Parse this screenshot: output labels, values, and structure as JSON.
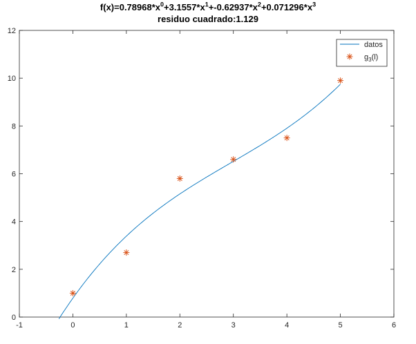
{
  "chart_data": {
    "type": "line",
    "title": {
      "f_prefix": "f(x)=",
      "terms": [
        {
          "coef": "0.78968",
          "sep": "*x",
          "exp": "0",
          "op": "+"
        },
        {
          "coef": "3.1557",
          "sep": "*x",
          "exp": "1",
          "op": "+"
        },
        {
          "coef": "-0.62937",
          "sep": "*x",
          "exp": "2",
          "op": "+"
        },
        {
          "coef": "0.071296",
          "sep": "*x",
          "exp": "3",
          "op": ""
        }
      ],
      "line2": "residuo cuadrado:1.129"
    },
    "coefficients": [
      0.78968,
      3.1557,
      -0.62937,
      0.071296
    ],
    "curve_x_range": [
      -0.26,
      5
    ],
    "xlim": [
      -1,
      6
    ],
    "ylim": [
      0,
      12
    ],
    "xticks": [
      -1,
      0,
      1,
      2,
      3,
      4,
      5,
      6
    ],
    "yticks": [
      0,
      2,
      4,
      6,
      8,
      10,
      12
    ],
    "grid": false,
    "legend_position": "top-right",
    "series": [
      {
        "name": "datos",
        "kind": "line",
        "color": "#0072bd"
      },
      {
        "name_base": "g",
        "name_sub": "3",
        "name_suffix": "(l)",
        "kind": "scatter",
        "marker": "asterisk",
        "color": "#d95319",
        "x": [
          0,
          1,
          2,
          3,
          4,
          5
        ],
        "y": [
          1.0,
          2.7,
          5.8,
          6.6,
          7.5,
          9.9
        ]
      }
    ]
  }
}
